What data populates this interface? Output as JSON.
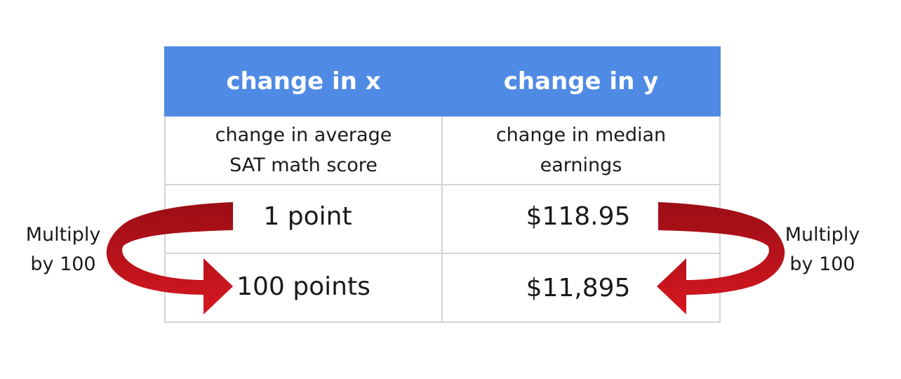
{
  "table": {
    "headers": [
      "change in x",
      "change in y"
    ],
    "descriptions": [
      [
        "change in average",
        "SAT math score"
      ],
      [
        "change in median",
        "earnings"
      ]
    ],
    "rows": [
      [
        "1 point",
        "$118.95"
      ],
      [
        "100 points",
        "$11,895"
      ]
    ]
  },
  "side_labels": {
    "left": [
      "Multiply",
      "by 100"
    ],
    "right": [
      "Multiply",
      "by 100"
    ]
  },
  "colors": {
    "header_bg": "#4f8ae4",
    "header_text": "#ffffff",
    "arrow_dark": "#9b0d14",
    "arrow_light": "#d81820",
    "grid": "#d4d4d4"
  },
  "icons": {
    "left_arrow": "curved-arrow-down-right-icon",
    "right_arrow": "curved-arrow-down-left-icon"
  }
}
